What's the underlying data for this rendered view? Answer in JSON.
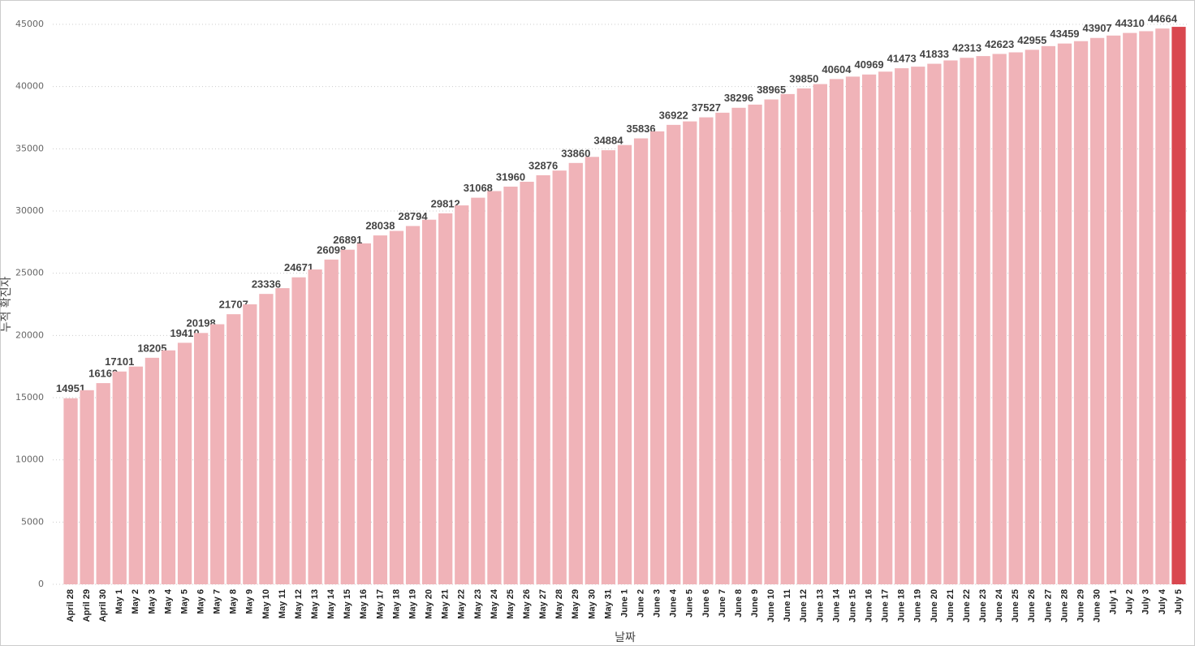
{
  "chart_data": {
    "type": "bar",
    "y_label": "누적 확진자",
    "x_label": "날짜",
    "categories": [
      "April 28",
      "April 29",
      "April 30",
      "May 1",
      "May 2",
      "May 3",
      "May 4",
      "May 5",
      "May 6",
      "May 7",
      "May 8",
      "May 9",
      "May 10",
      "May 11",
      "May 12",
      "May 13",
      "May 14",
      "May 15",
      "May 16",
      "May 17",
      "May 18",
      "May 19",
      "May 20",
      "May 21",
      "May 22",
      "May 23",
      "May 24",
      "May 25",
      "May 26",
      "May 27",
      "May 28",
      "May 29",
      "May 30",
      "May 31",
      "June 1",
      "June 2",
      "June 3",
      "June 4",
      "June 5",
      "June 6",
      "June 7",
      "June 8",
      "June 9",
      "June 10",
      "June 11",
      "June 12",
      "June 13",
      "June 14",
      "June 15",
      "June 16",
      "June 17",
      "June 18",
      "June 19",
      "June 20",
      "June 21",
      "June 22",
      "June 23",
      "June 24",
      "June 25",
      "June 26",
      "June 27",
      "June 28",
      "June 29",
      "June 30",
      "July 1",
      "July 2",
      "July 3",
      "July 4",
      "July 5"
    ],
    "values": [
      14951,
      15600,
      16169,
      17101,
      17500,
      18205,
      18800,
      19410,
      20198,
      20900,
      21707,
      22500,
      23336,
      23800,
      24671,
      25300,
      26098,
      26891,
      27400,
      28038,
      28400,
      28794,
      29300,
      29812,
      30450,
      31068,
      31600,
      31960,
      32350,
      32876,
      33250,
      33860,
      34350,
      34884,
      35300,
      35836,
      36400,
      36922,
      37200,
      37527,
      37900,
      38296,
      38550,
      38965,
      39400,
      39850,
      40200,
      40604,
      40800,
      40969,
      41200,
      41473,
      41600,
      41833,
      42100,
      42313,
      42450,
      42623,
      42750,
      42955,
      43250,
      43459,
      43650,
      43907,
      44100,
      44310,
      44450,
      44664,
      44800
    ],
    "value_labels": [
      "14951",
      null,
      "16169",
      "17101",
      null,
      "18205",
      null,
      "19410",
      "20198",
      null,
      "21707",
      null,
      "23336",
      null,
      "24671",
      null,
      "26098",
      "26891",
      null,
      "28038",
      null,
      "28794",
      null,
      "29812",
      null,
      "31068",
      null,
      "31960",
      null,
      "32876",
      null,
      "33860",
      null,
      "34884",
      null,
      "35836",
      null,
      "36922",
      null,
      "37527",
      null,
      "38296",
      null,
      "38965",
      null,
      "39850",
      null,
      "40604",
      null,
      "40969",
      null,
      "41473",
      null,
      "41833",
      null,
      "42313",
      null,
      "42623",
      null,
      "42955",
      null,
      "43459",
      null,
      "43907",
      null,
      "44310",
      null,
      "44664",
      null
    ],
    "colors": [
      "#f0b3b8",
      "#f0b3b8",
      "#f0b3b8",
      "#f0b3b8",
      "#f0b3b8",
      "#f0b3b8",
      "#f0b3b8",
      "#f0b3b8",
      "#f0b3b8",
      "#f0b3b8",
      "#f0b3b8",
      "#f0b3b8",
      "#f0b3b8",
      "#f0b3b8",
      "#f0b3b8",
      "#f0b3b8",
      "#f0b3b8",
      "#f0b3b8",
      "#f0b3b8",
      "#f0b3b8",
      "#f0b3b8",
      "#f0b3b8",
      "#f0b3b8",
      "#f0b3b8",
      "#f0b3b8",
      "#f0b3b8",
      "#f0b3b8",
      "#f0b3b8",
      "#f0b3b8",
      "#f0b3b8",
      "#f0b3b8",
      "#f0b3b8",
      "#f0b3b8",
      "#f0b3b8",
      "#f0b3b8",
      "#f0b3b8",
      "#f0b3b8",
      "#f0b3b8",
      "#f0b3b8",
      "#f0b3b8",
      "#f0b3b8",
      "#f0b3b8",
      "#f0b3b8",
      "#f0b3b8",
      "#f0b3b8",
      "#f0b3b8",
      "#f0b3b8",
      "#f0b3b8",
      "#f0b3b8",
      "#f0b3b8",
      "#f0b3b8",
      "#f0b3b8",
      "#f0b3b8",
      "#f0b3b8",
      "#f0b3b8",
      "#f0b3b8",
      "#f0b3b8",
      "#f0b3b8",
      "#f0b3b8",
      "#f0b3b8",
      "#f0b3b8",
      "#f0b3b8",
      "#f0b3b8",
      "#f0b3b8",
      "#f0b3b8",
      "#f0b3b8",
      "#f0b3b8",
      "#f0b3b8",
      "#d9474f"
    ],
    "ylim": [
      0,
      45000
    ],
    "yticks": [
      0,
      5000,
      10000,
      15000,
      20000,
      25000,
      30000,
      35000,
      40000,
      45000
    ],
    "grid": true
  }
}
